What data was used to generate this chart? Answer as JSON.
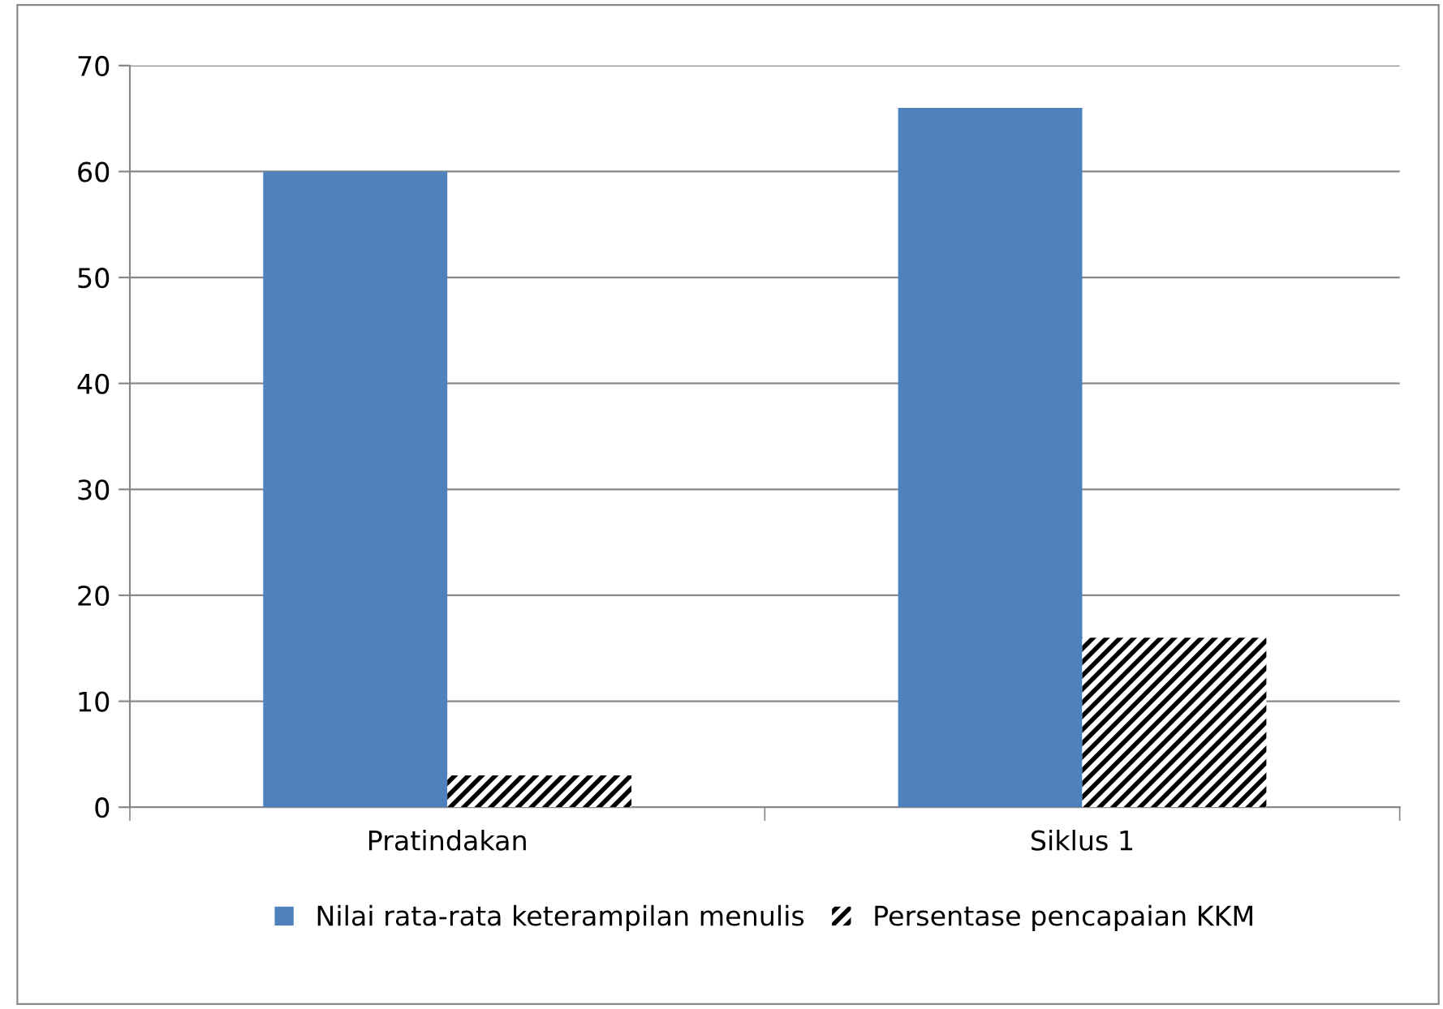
{
  "chart_data": {
    "type": "bar",
    "categories": [
      "Pratindakan",
      "Siklus 1"
    ],
    "series": [
      {
        "name": "Nilai rata-rata keterampilan menulis",
        "color": "#4f81bd",
        "values": [
          60,
          66
        ]
      },
      {
        "name": "Persentase pencapaian KKM",
        "color": "#000000",
        "values": [
          3,
          16
        ]
      }
    ],
    "ylim": [
      0,
      70
    ],
    "yticks": [
      0,
      10,
      20,
      30,
      40,
      50,
      60,
      70
    ],
    "grid": "y",
    "legend": "bottom"
  }
}
